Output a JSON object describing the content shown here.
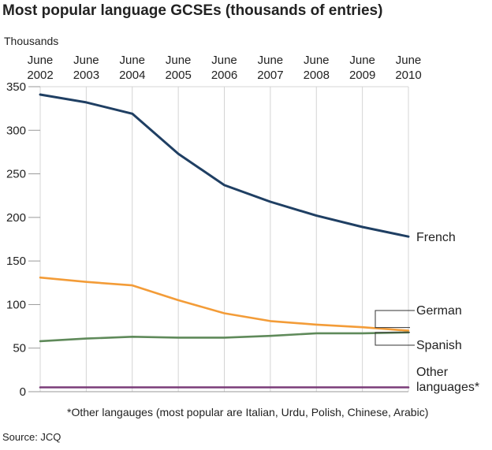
{
  "chart_data": {
    "type": "line",
    "title": "Most popular language GCSEs (thousands of entries)",
    "ylabel": "Thousands",
    "xlabel": "",
    "categories": [
      [
        "June",
        "2002"
      ],
      [
        "June",
        "2003"
      ],
      [
        "June",
        "2004"
      ],
      [
        "June",
        "2005"
      ],
      [
        "June",
        "2006"
      ],
      [
        "June",
        "2007"
      ],
      [
        "June",
        "2008"
      ],
      [
        "June",
        "2009"
      ],
      [
        "June",
        "2010"
      ]
    ],
    "ylim": [
      0,
      350
    ],
    "yticks": [
      "0",
      "50",
      "100",
      "150",
      "200",
      "250",
      "300",
      "350"
    ],
    "grid": "vertical",
    "legend_placement": "right, labels at line ends",
    "series": [
      {
        "name": "French",
        "label_lines": [
          "French"
        ],
        "color": "#1f3f63",
        "values": [
          341,
          332,
          319,
          273,
          237,
          218,
          202,
          189,
          178
        ]
      },
      {
        "name": "German",
        "label_lines": [
          "German"
        ],
        "color": "#f39c38",
        "values": [
          131,
          126,
          122,
          105,
          90,
          81,
          77,
          74,
          70
        ]
      },
      {
        "name": "Spanish",
        "label_lines": [
          "Spanish"
        ],
        "color": "#5f8a5a",
        "values": [
          58,
          61,
          63,
          62,
          62,
          64,
          67,
          67,
          68
        ]
      },
      {
        "name": "Other languages*",
        "label_lines": [
          "Other",
          "languages*"
        ],
        "color": "#7a3c78",
        "values": [
          5,
          5,
          5,
          5,
          5,
          5,
          5,
          5,
          5
        ]
      }
    ],
    "footnote": "*Other langauges (most popular are Italian, Urdu, Polish, Chinese, Arabic)",
    "source": "Source: JCQ"
  }
}
